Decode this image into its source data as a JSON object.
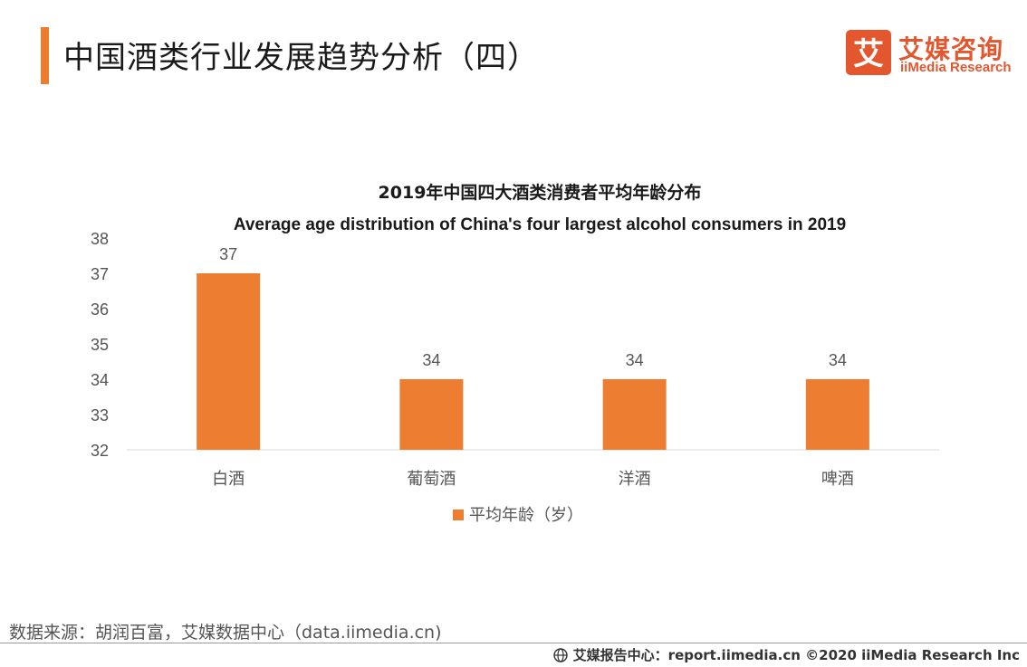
{
  "header": {
    "title": "中国酒类行业发展趋势分析（四）",
    "accent_color": "#EE7B2E"
  },
  "logo": {
    "cn": "艾媒咨询",
    "en": "iiMedia Research",
    "mark_char": "艾",
    "color": "#E4572E"
  },
  "chart_data": {
    "type": "bar",
    "title": "2019年中国四大酒类消费者平均年龄分布",
    "subtitle": "Average age distribution of China's four largest alcohol consumers in 2019",
    "categories": [
      "白酒",
      "葡萄酒",
      "洋酒",
      "啤酒"
    ],
    "series": [
      {
        "name": "平均年龄（岁）",
        "values": [
          37,
          34,
          34,
          34
        ],
        "color": "#ED7D31"
      }
    ],
    "ylim": [
      32,
      38
    ],
    "yticks": [
      "32",
      "33",
      "34",
      "35",
      "36",
      "37",
      "38"
    ],
    "data_labels": [
      "37",
      "34",
      "34",
      "34"
    ],
    "legend_position": "bottom",
    "grid": false
  },
  "source": "数据来源：胡润百富，艾媒数据中心（data.iimedia.cn)",
  "footer": {
    "icon": "globe-icon",
    "text": "艾媒报告中心：report.iimedia.cn  ©2020  iiMedia Research  Inc"
  }
}
